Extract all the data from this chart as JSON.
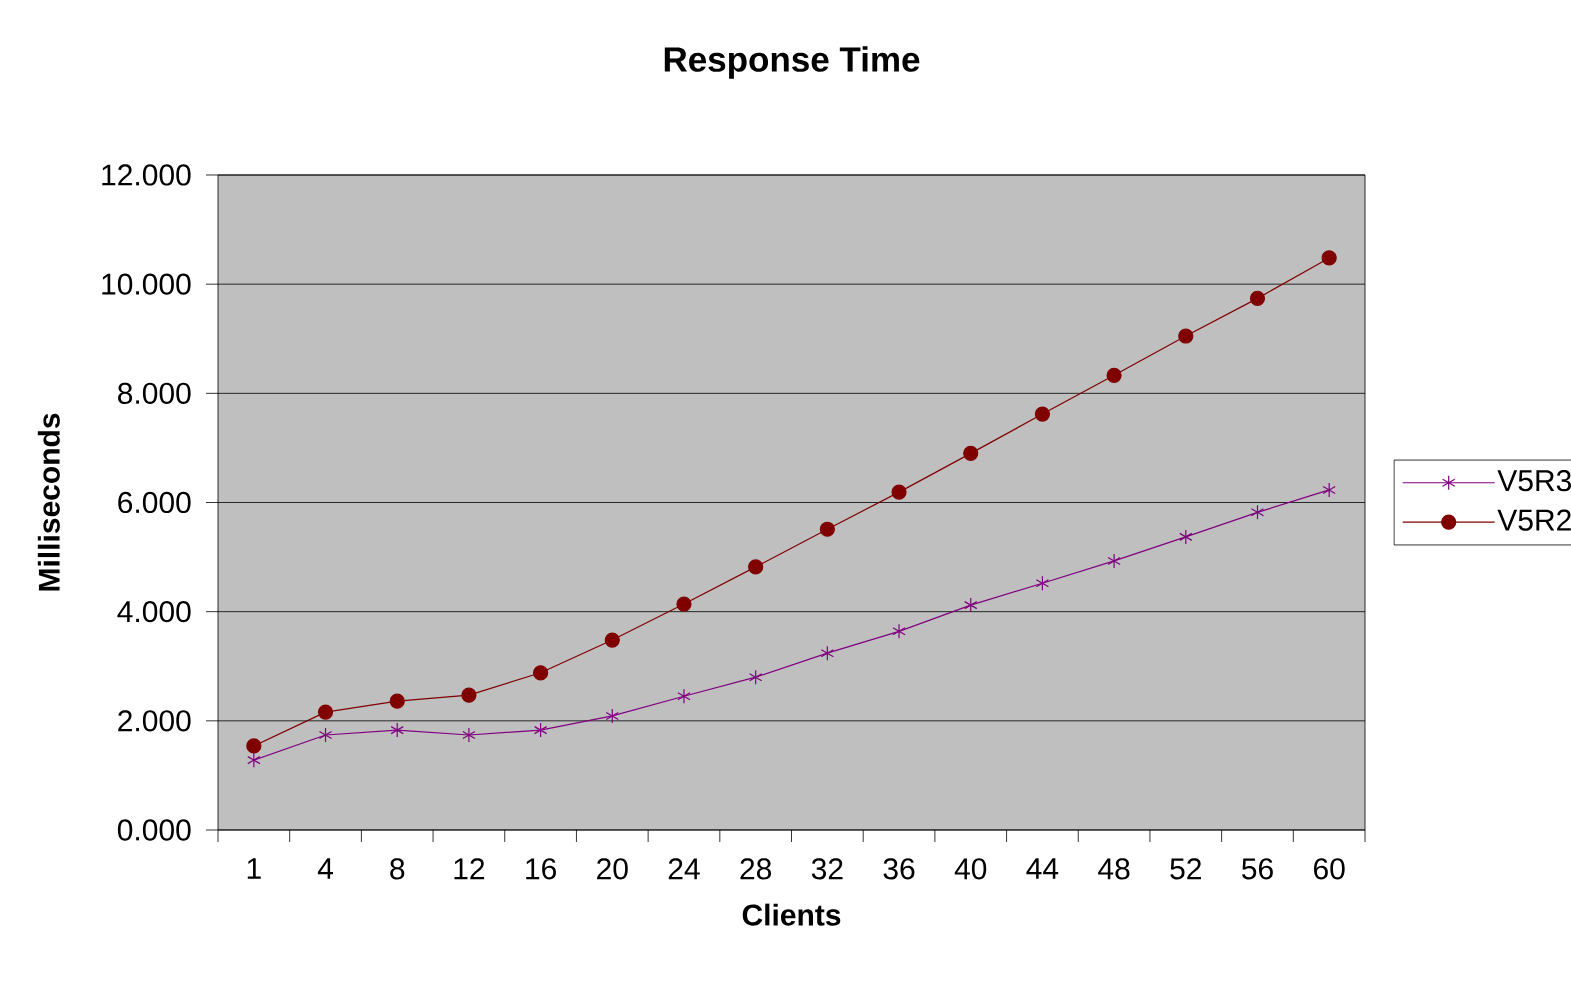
{
  "chart_data": {
    "type": "line",
    "title": "Response Time",
    "xlabel": "Clients",
    "ylabel": "Milliseconds",
    "categories": [
      "1",
      "4",
      "8",
      "12",
      "16",
      "20",
      "24",
      "28",
      "32",
      "36",
      "40",
      "44",
      "48",
      "52",
      "56",
      "60"
    ],
    "series": [
      {
        "name": "V5R3",
        "color": "#800080",
        "marker": "cross",
        "values": [
          1.28,
          1.74,
          1.83,
          1.74,
          1.83,
          2.09,
          2.45,
          2.8,
          3.24,
          3.64,
          4.12,
          4.52,
          4.93,
          5.37,
          5.82,
          6.23
        ]
      },
      {
        "name": "V5R2",
        "color": "#800000",
        "marker": "circle",
        "values": [
          1.54,
          2.16,
          2.36,
          2.47,
          2.88,
          3.48,
          4.14,
          4.82,
          5.51,
          6.19,
          6.9,
          7.62,
          8.33,
          9.05,
          9.74,
          10.48
        ]
      }
    ],
    "ylim": [
      0,
      12
    ],
    "yticks": [
      {
        "value": 0,
        "label": "0.000"
      },
      {
        "value": 2,
        "label": "2.000"
      },
      {
        "value": 4,
        "label": "4.000"
      },
      {
        "value": 6,
        "label": "6.000"
      },
      {
        "value": 8,
        "label": "8.000"
      },
      {
        "value": 10,
        "label": "10.000"
      },
      {
        "value": 12,
        "label": "12.000"
      }
    ],
    "grid": "y",
    "legend": "right",
    "line_style": "solid"
  }
}
